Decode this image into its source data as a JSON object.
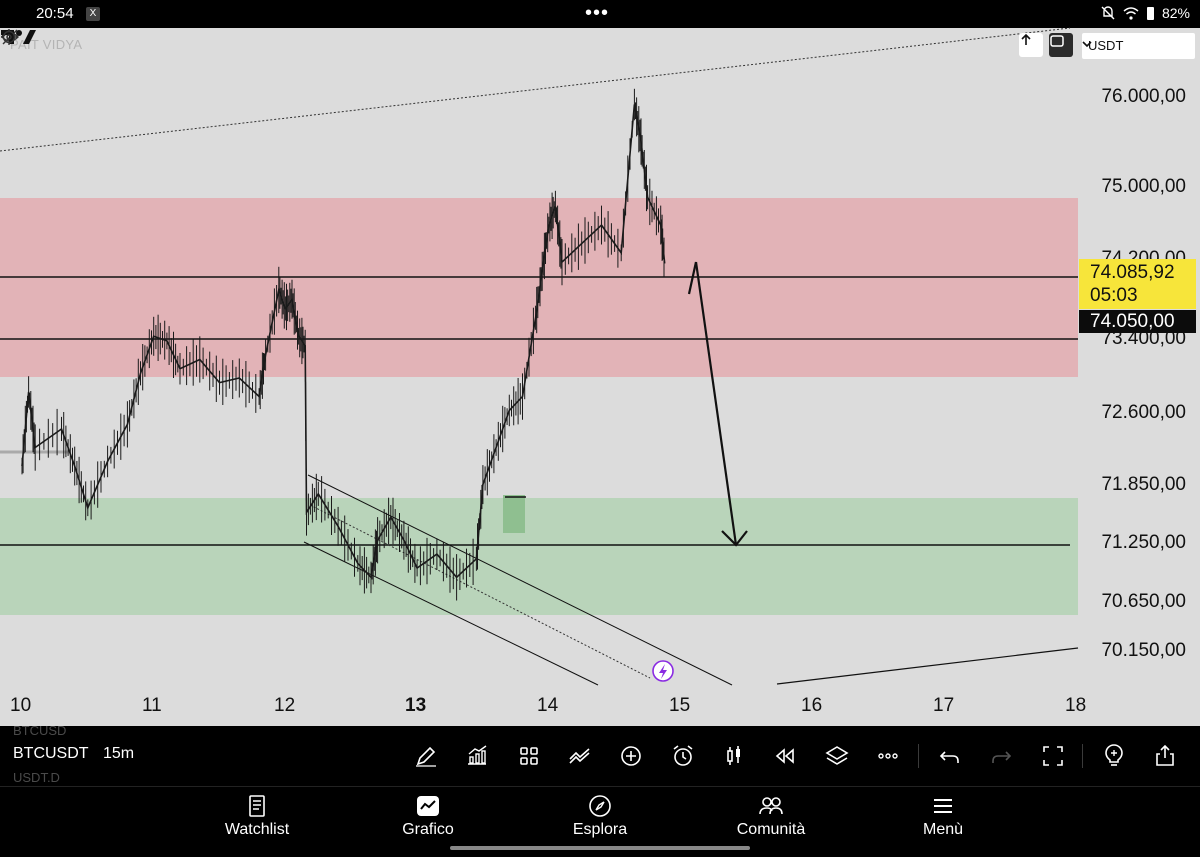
{
  "status_bar": {
    "time": "20:54",
    "notification_icon": "x-app-icon",
    "center_menu": "•••",
    "battery": "82%"
  },
  "chart_header": {
    "watermark": "PAIT VIDYA",
    "currency": "USDT"
  },
  "price_axis": {
    "labels": [
      "76.000,00",
      "75.000,00",
      "74.200,00",
      "73.400,00",
      "72.600,00",
      "71.850,00",
      "71.250,00",
      "70.650,00",
      "70.150,00"
    ],
    "live_price": "74.085,92",
    "countdown": "05:03",
    "level_price": "74.050,00"
  },
  "time_axis": {
    "labels": [
      "10",
      "11",
      "12",
      "13",
      "14",
      "15",
      "16",
      "17",
      "18"
    ],
    "emphasized": "13"
  },
  "toolbar": {
    "symbol": "BTCUSDT",
    "symbol_ghost_top": "BTCUSD",
    "symbol_ghost_bottom": "USDT.D",
    "interval": "15m",
    "tools": [
      "draw-pencil-icon",
      "indicators-icon",
      "layout-grid-icon",
      "templates-icon",
      "add-icon",
      "alert-clock-icon",
      "candles-icon",
      "replay-icon",
      "layers-icon",
      "more-icon",
      "undo-icon",
      "redo-icon",
      "fullscreen-icon",
      "idea-bulb-icon",
      "share-icon"
    ]
  },
  "bottom_nav": {
    "items": [
      {
        "label": "Watchlist",
        "icon": "watchlist-icon"
      },
      {
        "label": "Grafico",
        "icon": "chart-icon"
      },
      {
        "label": "Esplora",
        "icon": "compass-icon"
      },
      {
        "label": "Comunità",
        "icon": "community-icon"
      },
      {
        "label": "Menù",
        "icon": "menu-icon"
      }
    ]
  },
  "colors": {
    "chart_bg": "#dcdcdc",
    "supply_zone": "#e2b3b7",
    "demand_zone": "#b9d4ba",
    "live_price_tag": "#f7e53a",
    "candles": "#1a1a1a",
    "event_marker": "#8a2be2"
  },
  "chart_data": {
    "type": "candlestick",
    "symbol": "BTCUSDT",
    "interval": "15m",
    "x_ticks": [
      "10",
      "11",
      "12",
      "13",
      "14",
      "15",
      "16",
      "17",
      "18"
    ],
    "y_ticks": [
      76000,
      75000,
      74200,
      73400,
      72600,
      71850,
      71250,
      70650,
      70150
    ],
    "ylim": [
      69500,
      76800
    ],
    "last_price": 74085.92,
    "path_points": [
      [
        10.0,
        71900
      ],
      [
        10.05,
        72700
      ],
      [
        10.1,
        72100
      ],
      [
        10.3,
        72300
      ],
      [
        10.4,
        71900
      ],
      [
        10.5,
        71450
      ],
      [
        10.65,
        71950
      ],
      [
        10.8,
        72350
      ],
      [
        10.9,
        72900
      ],
      [
        11.0,
        73300
      ],
      [
        11.1,
        73250
      ],
      [
        11.2,
        72950
      ],
      [
        11.35,
        73050
      ],
      [
        11.5,
        72800
      ],
      [
        11.65,
        72850
      ],
      [
        11.8,
        72650
      ],
      [
        11.85,
        73100
      ],
      [
        11.95,
        73800
      ],
      [
        12.0,
        73600
      ],
      [
        12.05,
        73700
      ],
      [
        12.1,
        73300
      ],
      [
        12.15,
        73200
      ],
      [
        12.16,
        71400
      ],
      [
        12.25,
        71600
      ],
      [
        12.4,
        71250
      ],
      [
        12.55,
        70850
      ],
      [
        12.65,
        70700
      ],
      [
        12.7,
        71100
      ],
      [
        12.8,
        71350
      ],
      [
        12.9,
        71100
      ],
      [
        13.0,
        70800
      ],
      [
        13.15,
        70950
      ],
      [
        13.3,
        70700
      ],
      [
        13.45,
        70900
      ],
      [
        13.5,
        71700
      ],
      [
        13.6,
        72100
      ],
      [
        13.7,
        72500
      ],
      [
        13.8,
        72650
      ],
      [
        13.9,
        73500
      ],
      [
        13.95,
        74000
      ],
      [
        14.0,
        74500
      ],
      [
        14.05,
        74700
      ],
      [
        14.1,
        74100
      ],
      [
        14.25,
        74300
      ],
      [
        14.4,
        74500
      ],
      [
        14.55,
        74200
      ],
      [
        14.65,
        75800
      ],
      [
        14.7,
        75400
      ],
      [
        14.75,
        74800
      ],
      [
        14.85,
        74500
      ],
      [
        14.88,
        74085.92
      ]
    ],
    "zones": [
      {
        "type": "supply",
        "from": 73100,
        "to": 74900
      },
      {
        "type": "demand",
        "from": 70650,
        "to": 71850
      }
    ],
    "horizontal_levels": [
      74085.92,
      73400,
      71250
    ],
    "projection": [
      [
        15.15,
        74200
      ],
      [
        15.4,
        71250
      ]
    ]
  }
}
